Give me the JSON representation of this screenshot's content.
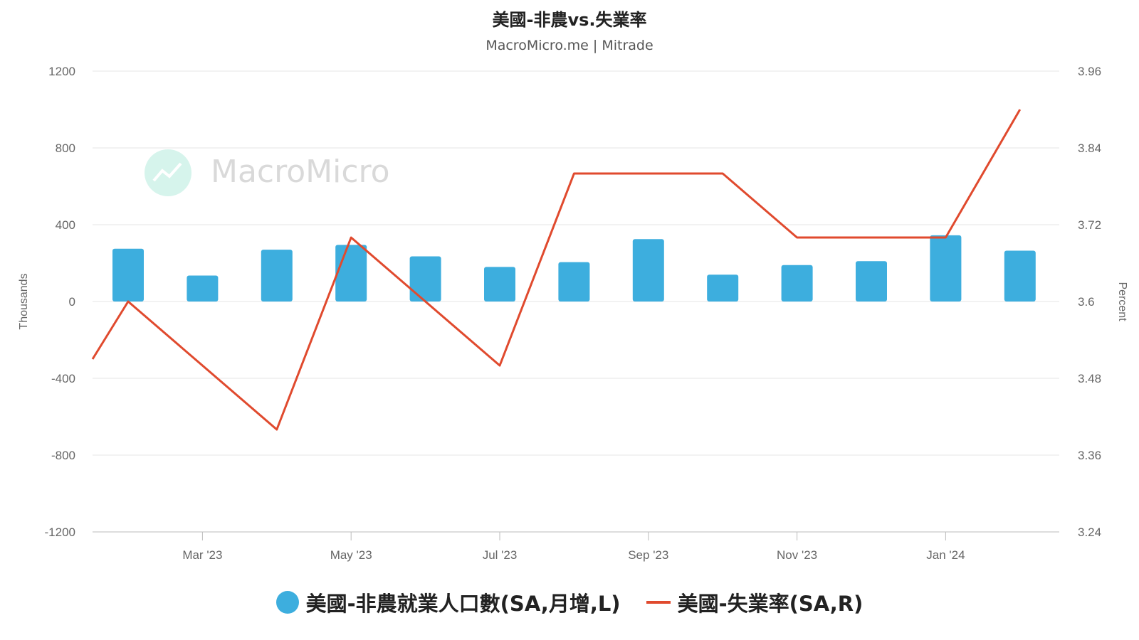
{
  "chart_data": {
    "type": "bar+line",
    "title": "美國-非農vs.失業率",
    "subtitle": "MacroMicro.me | Mitrade",
    "watermark": "MacroMicro",
    "left_axis": {
      "label": "Thousands",
      "ticks": [
        "1200",
        "800",
        "400",
        "0",
        "-400",
        "-800",
        "-1200"
      ],
      "range": [
        -1200,
        1200
      ]
    },
    "right_axis": {
      "label": "Percent",
      "ticks": [
        "3.96",
        "3.84",
        "3.72",
        "3.6",
        "3.48",
        "3.36",
        "3.24"
      ],
      "range": [
        3.24,
        3.96
      ]
    },
    "x_tick_labels": [
      "Mar '23",
      "May '23",
      "Jul '23",
      "Sep '23",
      "Nov '23",
      "Jan '24"
    ],
    "x": [
      "2023-02",
      "2023-03",
      "2023-04",
      "2023-05",
      "2023-06",
      "2023-07",
      "2023-08",
      "2023-09",
      "2023-10",
      "2023-11",
      "2023-12",
      "2024-01",
      "2024-02"
    ],
    "series": [
      {
        "name": "美國-非農就業人口數(SA,月增,L)",
        "kind": "bar",
        "axis": "left",
        "color": "#3daede",
        "values": [
          275,
          135,
          270,
          295,
          235,
          180,
          205,
          325,
          140,
          190,
          210,
          345,
          265
        ]
      },
      {
        "name": "美國-失業率(SA,R)",
        "kind": "line",
        "axis": "right",
        "color": "#e04a2e",
        "values": [
          3.6,
          3.5,
          3.4,
          3.7,
          3.6,
          3.5,
          3.8,
          3.8,
          3.8,
          3.7,
          3.7,
          3.7,
          3.9
        ]
      }
    ],
    "line_start_value": 3.51,
    "grid": true,
    "legend_position": "bottom"
  }
}
